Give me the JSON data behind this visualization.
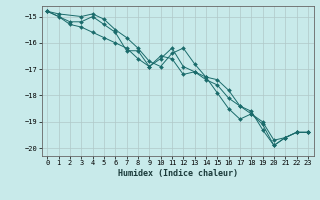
{
  "title": "",
  "xlabel": "Humidex (Indice chaleur)",
  "ylabel": "",
  "background_color": "#c8eaea",
  "grid_color": "#b0c8c8",
  "line_color": "#1a6b6b",
  "marker_color": "#1a6b6b",
  "xlim": [
    -0.5,
    23.5
  ],
  "ylim": [
    -20.3,
    -14.6
  ],
  "yticks": [
    -20,
    -19,
    -18,
    -17,
    -16,
    -15
  ],
  "xticks": [
    0,
    1,
    2,
    3,
    4,
    5,
    6,
    7,
    8,
    9,
    10,
    11,
    12,
    13,
    14,
    15,
    16,
    17,
    18,
    19,
    20,
    21,
    22,
    23
  ],
  "series1_x": [
    0,
    1,
    3,
    4,
    5,
    6,
    7,
    8,
    9,
    10,
    11,
    12,
    13,
    14,
    15,
    16,
    17,
    18,
    19,
    20,
    21,
    22,
    23
  ],
  "series1_y": [
    -14.8,
    -14.9,
    -15.0,
    -14.9,
    -15.1,
    -15.5,
    -15.8,
    -16.2,
    -16.7,
    -16.9,
    -16.4,
    -16.2,
    -16.8,
    -17.3,
    -17.4,
    -17.8,
    -18.4,
    -18.7,
    -19.0,
    -19.7,
    -19.6,
    -19.4,
    -19.4
  ],
  "series2_x": [
    0,
    1,
    2,
    3,
    4,
    5,
    6,
    7,
    8,
    9,
    10,
    11,
    12,
    13,
    14,
    15,
    16,
    17,
    18,
    19,
    20,
    21,
    22,
    23
  ],
  "series2_y": [
    -14.8,
    -15.0,
    -15.3,
    -15.4,
    -15.6,
    -15.8,
    -16.0,
    -16.2,
    -16.6,
    -16.9,
    -16.6,
    -16.2,
    -16.9,
    -17.1,
    -17.3,
    -17.9,
    -18.5,
    -18.9,
    -18.7,
    -19.1,
    -19.9,
    -19.6,
    -19.4,
    -19.4
  ],
  "series3_x": [
    0,
    2,
    3,
    4,
    5,
    6,
    7,
    8,
    9,
    10,
    11,
    12,
    13,
    14,
    15,
    16,
    17,
    18,
    19,
    20,
    21,
    22,
    23
  ],
  "series3_y": [
    -14.8,
    -15.2,
    -15.2,
    -15.0,
    -15.3,
    -15.6,
    -16.3,
    -16.3,
    -16.9,
    -16.5,
    -16.6,
    -17.2,
    -17.1,
    -17.4,
    -17.6,
    -18.1,
    -18.4,
    -18.6,
    -19.3,
    -19.9,
    -19.6,
    -19.4,
    -19.4
  ],
  "figsize": [
    3.2,
    2.0
  ],
  "dpi": 100
}
